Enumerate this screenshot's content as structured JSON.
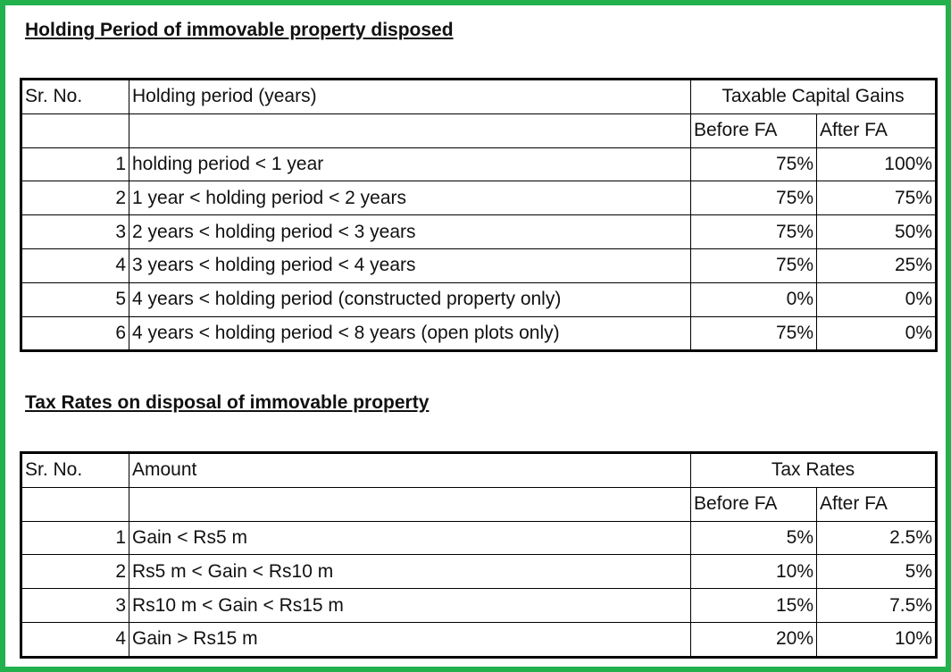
{
  "sections": [
    {
      "title": "Holding Period of immovable property disposed",
      "table": {
        "header": [
          "Sr. No.",
          "Holding period (years)",
          "Taxable Capital Gains"
        ],
        "subheader": [
          "Before FA",
          "After FA"
        ],
        "rows": [
          [
            1,
            "holding period < 1 year",
            "75%",
            "100%"
          ],
          [
            2,
            "1 year < holding period < 2 years",
            "75%",
            "75%"
          ],
          [
            3,
            "2 years < holding period < 3 years",
            "75%",
            "50%"
          ],
          [
            4,
            "3 years < holding period < 4 years",
            "75%",
            "25%"
          ],
          [
            5,
            "4 years < holding period (constructed property only)",
            "0%",
            "0%"
          ],
          [
            6,
            "4 years < holding period < 8 years  (open plots only)",
            "75%",
            "0%"
          ]
        ]
      }
    },
    {
      "title": "Tax Rates on disposal of immovable property",
      "table": {
        "header": [
          "Sr. No.",
          "Amount",
          "Tax Rates"
        ],
        "subheader": [
          "Before FA",
          "After FA"
        ],
        "rows": [
          [
            1,
            "Gain < Rs5 m",
            "5%",
            "2.5%"
          ],
          [
            2,
            "Rs5 m < Gain < Rs10 m",
            "10%",
            "5%"
          ],
          [
            3,
            "Rs10 m < Gain < Rs15 m",
            "15%",
            "7.5%"
          ],
          [
            4,
            "Gain > Rs15 m",
            "20%",
            "10%"
          ]
        ]
      }
    }
  ]
}
